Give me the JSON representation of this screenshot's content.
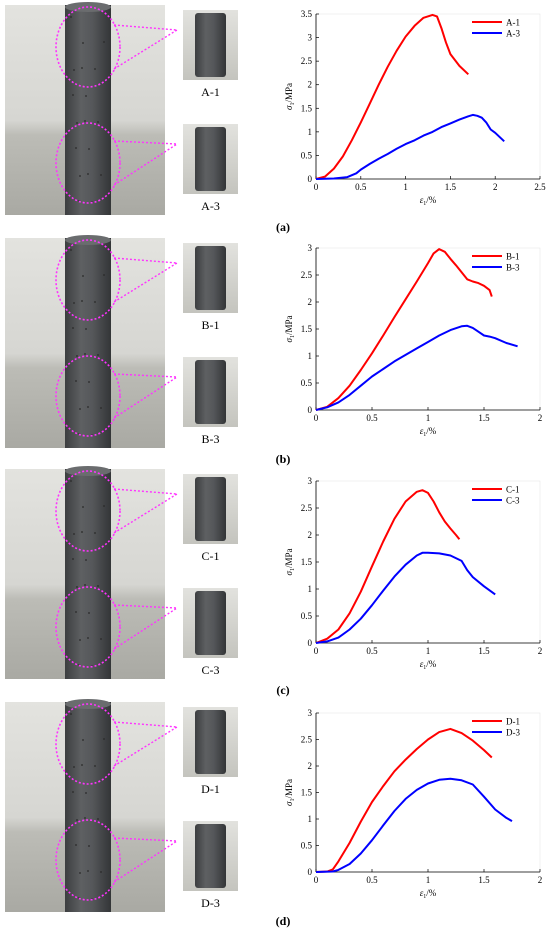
{
  "panels": [
    {
      "label": "(a)",
      "left_photo_label": "",
      "specimens": [
        "A-1",
        "A-3"
      ],
      "chart_data": {
        "type": "line",
        "xlabel_main": "ε",
        "xlabel_sub": "1",
        "xlabel_unit": "/%",
        "ylabel_main": "σ",
        "ylabel_sub": "1",
        "ylabel_unit": "/MPa",
        "xlim": [
          0,
          2.5
        ],
        "ylim": [
          0,
          3.5
        ],
        "xticks": [
          0,
          0.5,
          1,
          1.5,
          2,
          2.5
        ],
        "xtick_labels": [
          "0",
          "0.5",
          "1",
          "1.5",
          "2",
          "2.5"
        ],
        "yticks": [
          0,
          0.5,
          1,
          1.5,
          2,
          2.5,
          3,
          3.5
        ],
        "ytick_labels": [
          "0",
          "0.5",
          "1",
          "1.5",
          "2",
          "2.5",
          "3",
          "3.5"
        ],
        "legend_position": "top-right",
        "series": [
          {
            "name": "A-1",
            "color": "#ff0000",
            "x": [
              0,
              0.1,
              0.2,
              0.3,
              0.4,
              0.5,
              0.6,
              0.7,
              0.8,
              0.9,
              1.0,
              1.1,
              1.2,
              1.3,
              1.35,
              1.4,
              1.45,
              1.5,
              1.6,
              1.7
            ],
            "y": [
              0,
              0.05,
              0.22,
              0.48,
              0.82,
              1.2,
              1.6,
              2.0,
              2.38,
              2.72,
              3.02,
              3.25,
              3.42,
              3.48,
              3.45,
              3.2,
              2.9,
              2.65,
              2.4,
              2.22
            ]
          },
          {
            "name": "A-3",
            "color": "#0000ff",
            "x": [
              0,
              0.2,
              0.35,
              0.45,
              0.5,
              0.6,
              0.7,
              0.8,
              0.9,
              1.0,
              1.1,
              1.2,
              1.3,
              1.4,
              1.5,
              1.6,
              1.7,
              1.75,
              1.8,
              1.85,
              1.9,
              1.95,
              2.0,
              2.1
            ],
            "y": [
              0,
              0.01,
              0.04,
              0.12,
              0.2,
              0.32,
              0.43,
              0.53,
              0.64,
              0.74,
              0.82,
              0.92,
              1.0,
              1.1,
              1.18,
              1.26,
              1.33,
              1.36,
              1.34,
              1.3,
              1.2,
              1.05,
              0.98,
              0.8
            ]
          }
        ]
      }
    },
    {
      "label": "(b)",
      "specimens": [
        "B-1",
        "B-3"
      ],
      "chart_data": {
        "type": "line",
        "xlabel_main": "ε",
        "xlabel_sub": "1",
        "xlabel_unit": "/%",
        "ylabel_main": "σ",
        "ylabel_sub": "1",
        "ylabel_unit": "/MPa",
        "xlim": [
          0,
          2
        ],
        "ylim": [
          0,
          3
        ],
        "xticks": [
          0,
          0.5,
          1,
          1.5,
          2
        ],
        "xtick_labels": [
          "0",
          "0.5",
          "1",
          "1.5",
          "2"
        ],
        "yticks": [
          0,
          0.5,
          1,
          1.5,
          2,
          2.5,
          3
        ],
        "ytick_labels": [
          "0",
          "0.5",
          "1",
          "1.5",
          "2",
          "2.5",
          "3"
        ],
        "legend_position": "top-right",
        "series": [
          {
            "name": "B-1",
            "color": "#ff0000",
            "x": [
              0,
              0.1,
              0.2,
              0.3,
              0.4,
              0.5,
              0.6,
              0.7,
              0.8,
              0.9,
              1.0,
              1.05,
              1.1,
              1.15,
              1.2,
              1.25,
              1.3,
              1.35,
              1.4,
              1.45,
              1.5,
              1.55,
              1.57
            ],
            "y": [
              0,
              0.06,
              0.22,
              0.45,
              0.74,
              1.05,
              1.38,
              1.72,
              2.05,
              2.38,
              2.72,
              2.9,
              2.98,
              2.93,
              2.8,
              2.68,
              2.55,
              2.42,
              2.38,
              2.35,
              2.3,
              2.22,
              2.1
            ]
          },
          {
            "name": "B-3",
            "color": "#0000ff",
            "x": [
              0,
              0.1,
              0.2,
              0.3,
              0.4,
              0.5,
              0.6,
              0.7,
              0.8,
              0.9,
              1.0,
              1.1,
              1.2,
              1.3,
              1.35,
              1.4,
              1.45,
              1.5,
              1.55,
              1.6,
              1.7,
              1.8
            ],
            "y": [
              0,
              0.05,
              0.14,
              0.28,
              0.45,
              0.62,
              0.76,
              0.9,
              1.02,
              1.14,
              1.26,
              1.38,
              1.48,
              1.55,
              1.56,
              1.52,
              1.45,
              1.38,
              1.36,
              1.33,
              1.24,
              1.18
            ]
          }
        ]
      }
    },
    {
      "label": "(c)",
      "specimens": [
        "C-1",
        "C-3"
      ],
      "chart_data": {
        "type": "line",
        "xlabel_main": "ε",
        "xlabel_sub": "1",
        "xlabel_unit": "/%",
        "ylabel_main": "σ",
        "ylabel_sub": "1",
        "ylabel_unit": "/MPa",
        "xlim": [
          0,
          2
        ],
        "ylim": [
          0,
          3
        ],
        "xticks": [
          0,
          0.5,
          1,
          1.5,
          2
        ],
        "xtick_labels": [
          "0",
          "0.5",
          "1",
          "1.5",
          "2"
        ],
        "yticks": [
          0,
          0.5,
          1,
          1.5,
          2,
          2.5,
          3
        ],
        "ytick_labels": [
          "0",
          "0.5",
          "1",
          "1.5",
          "2",
          "2.5",
          "3"
        ],
        "legend_position": "top-right",
        "series": [
          {
            "name": "C-1",
            "color": "#ff0000",
            "x": [
              0,
              0.1,
              0.2,
              0.3,
              0.4,
              0.5,
              0.6,
              0.7,
              0.8,
              0.9,
              0.95,
              1.0,
              1.05,
              1.1,
              1.15,
              1.2,
              1.25,
              1.28
            ],
            "y": [
              0,
              0.08,
              0.25,
              0.55,
              0.95,
              1.42,
              1.88,
              2.3,
              2.62,
              2.8,
              2.83,
              2.78,
              2.62,
              2.42,
              2.25,
              2.12,
              2.0,
              1.92
            ]
          },
          {
            "name": "C-3",
            "color": "#0000ff",
            "x": [
              0,
              0.1,
              0.2,
              0.3,
              0.4,
              0.5,
              0.6,
              0.7,
              0.8,
              0.9,
              0.95,
              1.0,
              1.1,
              1.2,
              1.3,
              1.35,
              1.4,
              1.5,
              1.6
            ],
            "y": [
              0,
              0.03,
              0.1,
              0.25,
              0.45,
              0.7,
              0.97,
              1.23,
              1.45,
              1.62,
              1.67,
              1.67,
              1.66,
              1.62,
              1.52,
              1.35,
              1.22,
              1.05,
              0.9
            ]
          }
        ]
      }
    },
    {
      "label": "(d)",
      "specimens": [
        "D-1",
        "D-3"
      ],
      "chart_data": {
        "type": "line",
        "xlabel_main": "ε",
        "xlabel_sub": "1",
        "xlabel_unit": "/%",
        "ylabel_main": "σ",
        "ylabel_sub": "1",
        "ylabel_unit": "/MPa",
        "xlim": [
          0,
          2
        ],
        "ylim": [
          0,
          3
        ],
        "xticks": [
          0,
          0.5,
          1,
          1.5,
          2
        ],
        "xtick_labels": [
          "0",
          "0.5",
          "1",
          "1.5",
          "2"
        ],
        "yticks": [
          0,
          0.5,
          1,
          1.5,
          2,
          2.5,
          3
        ],
        "ytick_labels": [
          "0",
          "0.5",
          "1",
          "1.5",
          "2",
          "2.5",
          "3"
        ],
        "legend_position": "top-right",
        "series": [
          {
            "name": "D-1",
            "color": "#ff0000",
            "x": [
              0,
              0.1,
              0.15,
              0.2,
              0.3,
              0.4,
              0.5,
              0.6,
              0.7,
              0.8,
              0.9,
              1.0,
              1.1,
              1.2,
              1.3,
              1.4,
              1.5,
              1.57
            ],
            "y": [
              0,
              0.01,
              0.05,
              0.2,
              0.55,
              0.95,
              1.32,
              1.62,
              1.9,
              2.12,
              2.32,
              2.5,
              2.64,
              2.7,
              2.62,
              2.48,
              2.3,
              2.16
            ]
          },
          {
            "name": "D-3",
            "color": "#0000ff",
            "x": [
              0,
              0.15,
              0.2,
              0.3,
              0.4,
              0.5,
              0.6,
              0.7,
              0.8,
              0.9,
              1.0,
              1.1,
              1.2,
              1.3,
              1.4,
              1.5,
              1.6,
              1.7,
              1.75
            ],
            "y": [
              0,
              0.01,
              0.04,
              0.15,
              0.35,
              0.6,
              0.88,
              1.15,
              1.38,
              1.55,
              1.67,
              1.74,
              1.76,
              1.73,
              1.65,
              1.42,
              1.18,
              1.02,
              0.96
            ]
          }
        ]
      }
    }
  ],
  "colors": {
    "ellipse": "#ff33ff",
    "axis": "#000000",
    "photo_bg": "#cfcfcb",
    "column": "#4a4c4e"
  }
}
